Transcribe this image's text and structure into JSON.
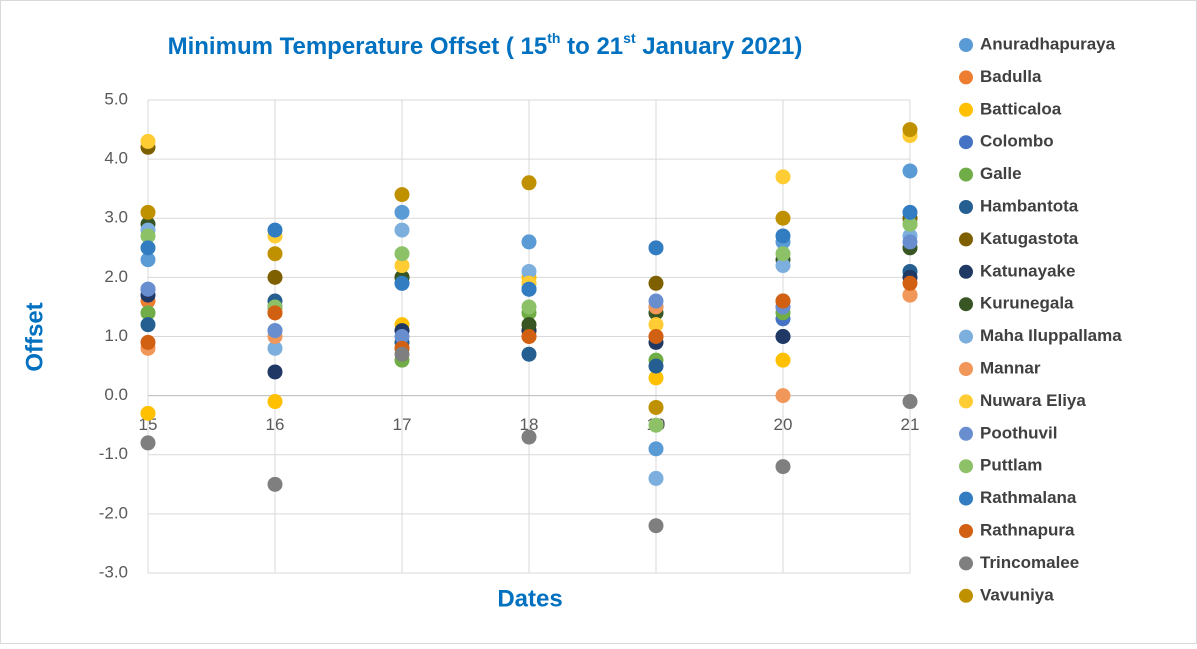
{
  "chart_data": {
    "type": "scatter",
    "title_parts": [
      "Minimum Temperature Offset ( 15",
      "th",
      " to 21",
      "st",
      " January 2021)"
    ],
    "xlabel": "Dates",
    "ylabel": "Offset",
    "x": [
      15,
      16,
      17,
      18,
      19,
      20,
      21
    ],
    "xlim": [
      15,
      21
    ],
    "xticks": [
      15,
      16,
      17,
      18,
      19,
      20,
      21
    ],
    "ylim": [
      -3,
      5
    ],
    "yticks": [
      {
        "value": -3,
        "label": "-3.0"
      },
      {
        "value": -2,
        "label": "-2.0"
      },
      {
        "value": -1,
        "label": "-1.0"
      },
      {
        "value": 0,
        "label": "0.0"
      },
      {
        "value": 1,
        "label": "1.0"
      },
      {
        "value": 2,
        "label": "2.0"
      },
      {
        "value": 3,
        "label": "3.0"
      },
      {
        "value": 4,
        "label": "4.0"
      },
      {
        "value": 5,
        "label": "5.0"
      }
    ],
    "grid": true,
    "legend": "right",
    "series": [
      {
        "name": "Anuradhapuraya",
        "color": "#5B9BD5",
        "values": [
          2.3,
          1.1,
          3.1,
          2.6,
          -0.9,
          2.6,
          3.8
        ]
      },
      {
        "name": "Badulla",
        "color": "#ED7D31",
        "values": [
          1.6,
          1.4,
          0.8,
          1.0,
          1.0,
          1.5,
          1.7
        ]
      },
      {
        "name": "Batticaloa",
        "color": "#FFC000",
        "values": [
          -0.3,
          -0.1,
          1.2,
          2.0,
          0.3,
          0.6,
          4.4
        ]
      },
      {
        "name": "Colombo",
        "color": "#4472C4",
        "values": [
          1.8,
          1.5,
          1.9,
          1.8,
          1.5,
          1.3,
          3.0
        ]
      },
      {
        "name": "Galle",
        "color": "#70AD47",
        "values": [
          1.4,
          1.5,
          0.6,
          1.4,
          0.6,
          1.4,
          2.9
        ]
      },
      {
        "name": "Hambantota",
        "color": "#255E91",
        "values": [
          1.2,
          1.6,
          0.9,
          0.7,
          0.5,
          1.0,
          2.1
        ]
      },
      {
        "name": "Katugastota",
        "color": "#7F6000",
        "values": [
          4.2,
          2.0,
          2.0,
          1.1,
          1.9,
          1.6,
          3.0
        ]
      },
      {
        "name": "Katunayake",
        "color": "#203864",
        "values": [
          1.7,
          0.4,
          1.1,
          1.1,
          0.9,
          1.0,
          2.0
        ]
      },
      {
        "name": "Kurunegala",
        "color": "#375623",
        "values": [
          2.9,
          1.5,
          2.0,
          1.2,
          1.4,
          2.3,
          2.5
        ]
      },
      {
        "name": "Maha Iluppallama",
        "color": "#7CAFDD",
        "values": [
          2.8,
          0.8,
          2.8,
          2.1,
          -1.4,
          2.2,
          2.7
        ]
      },
      {
        "name": "Mannar",
        "color": "#F1975A",
        "values": [
          0.8,
          1.0,
          0.8,
          1.9,
          1.5,
          0.0,
          1.7
        ]
      },
      {
        "name": "Nuwara Eliya",
        "color": "#FFCD33",
        "values": [
          4.3,
          2.7,
          2.2,
          1.9,
          1.2,
          3.7,
          4.4
        ]
      },
      {
        "name": "Poothuvil",
        "color": "#698ED0",
        "values": [
          1.8,
          1.1,
          1.0,
          1.8,
          1.6,
          1.5,
          2.6
        ]
      },
      {
        "name": "Puttlam",
        "color": "#8CC168",
        "values": [
          2.7,
          1.5,
          2.4,
          1.5,
          -0.5,
          2.4,
          2.9
        ]
      },
      {
        "name": "Rathmalana",
        "color": "#327DC2",
        "values": [
          2.5,
          2.8,
          1.9,
          1.8,
          2.5,
          2.7,
          3.1
        ]
      },
      {
        "name": "Rathnapura",
        "color": "#D26012",
        "values": [
          0.9,
          1.4,
          0.8,
          1.0,
          1.0,
          1.6,
          1.9
        ]
      },
      {
        "name": "Trincomalee",
        "color": "#7F7F7F",
        "values": [
          -0.8,
          -1.5,
          0.7,
          -0.7,
          -2.2,
          -1.2,
          -0.1
        ]
      },
      {
        "name": "Vavuniya",
        "color": "#BF9000",
        "values": [
          3.1,
          2.4,
          3.4,
          3.6,
          -0.2,
          3.0,
          4.5
        ]
      }
    ]
  }
}
